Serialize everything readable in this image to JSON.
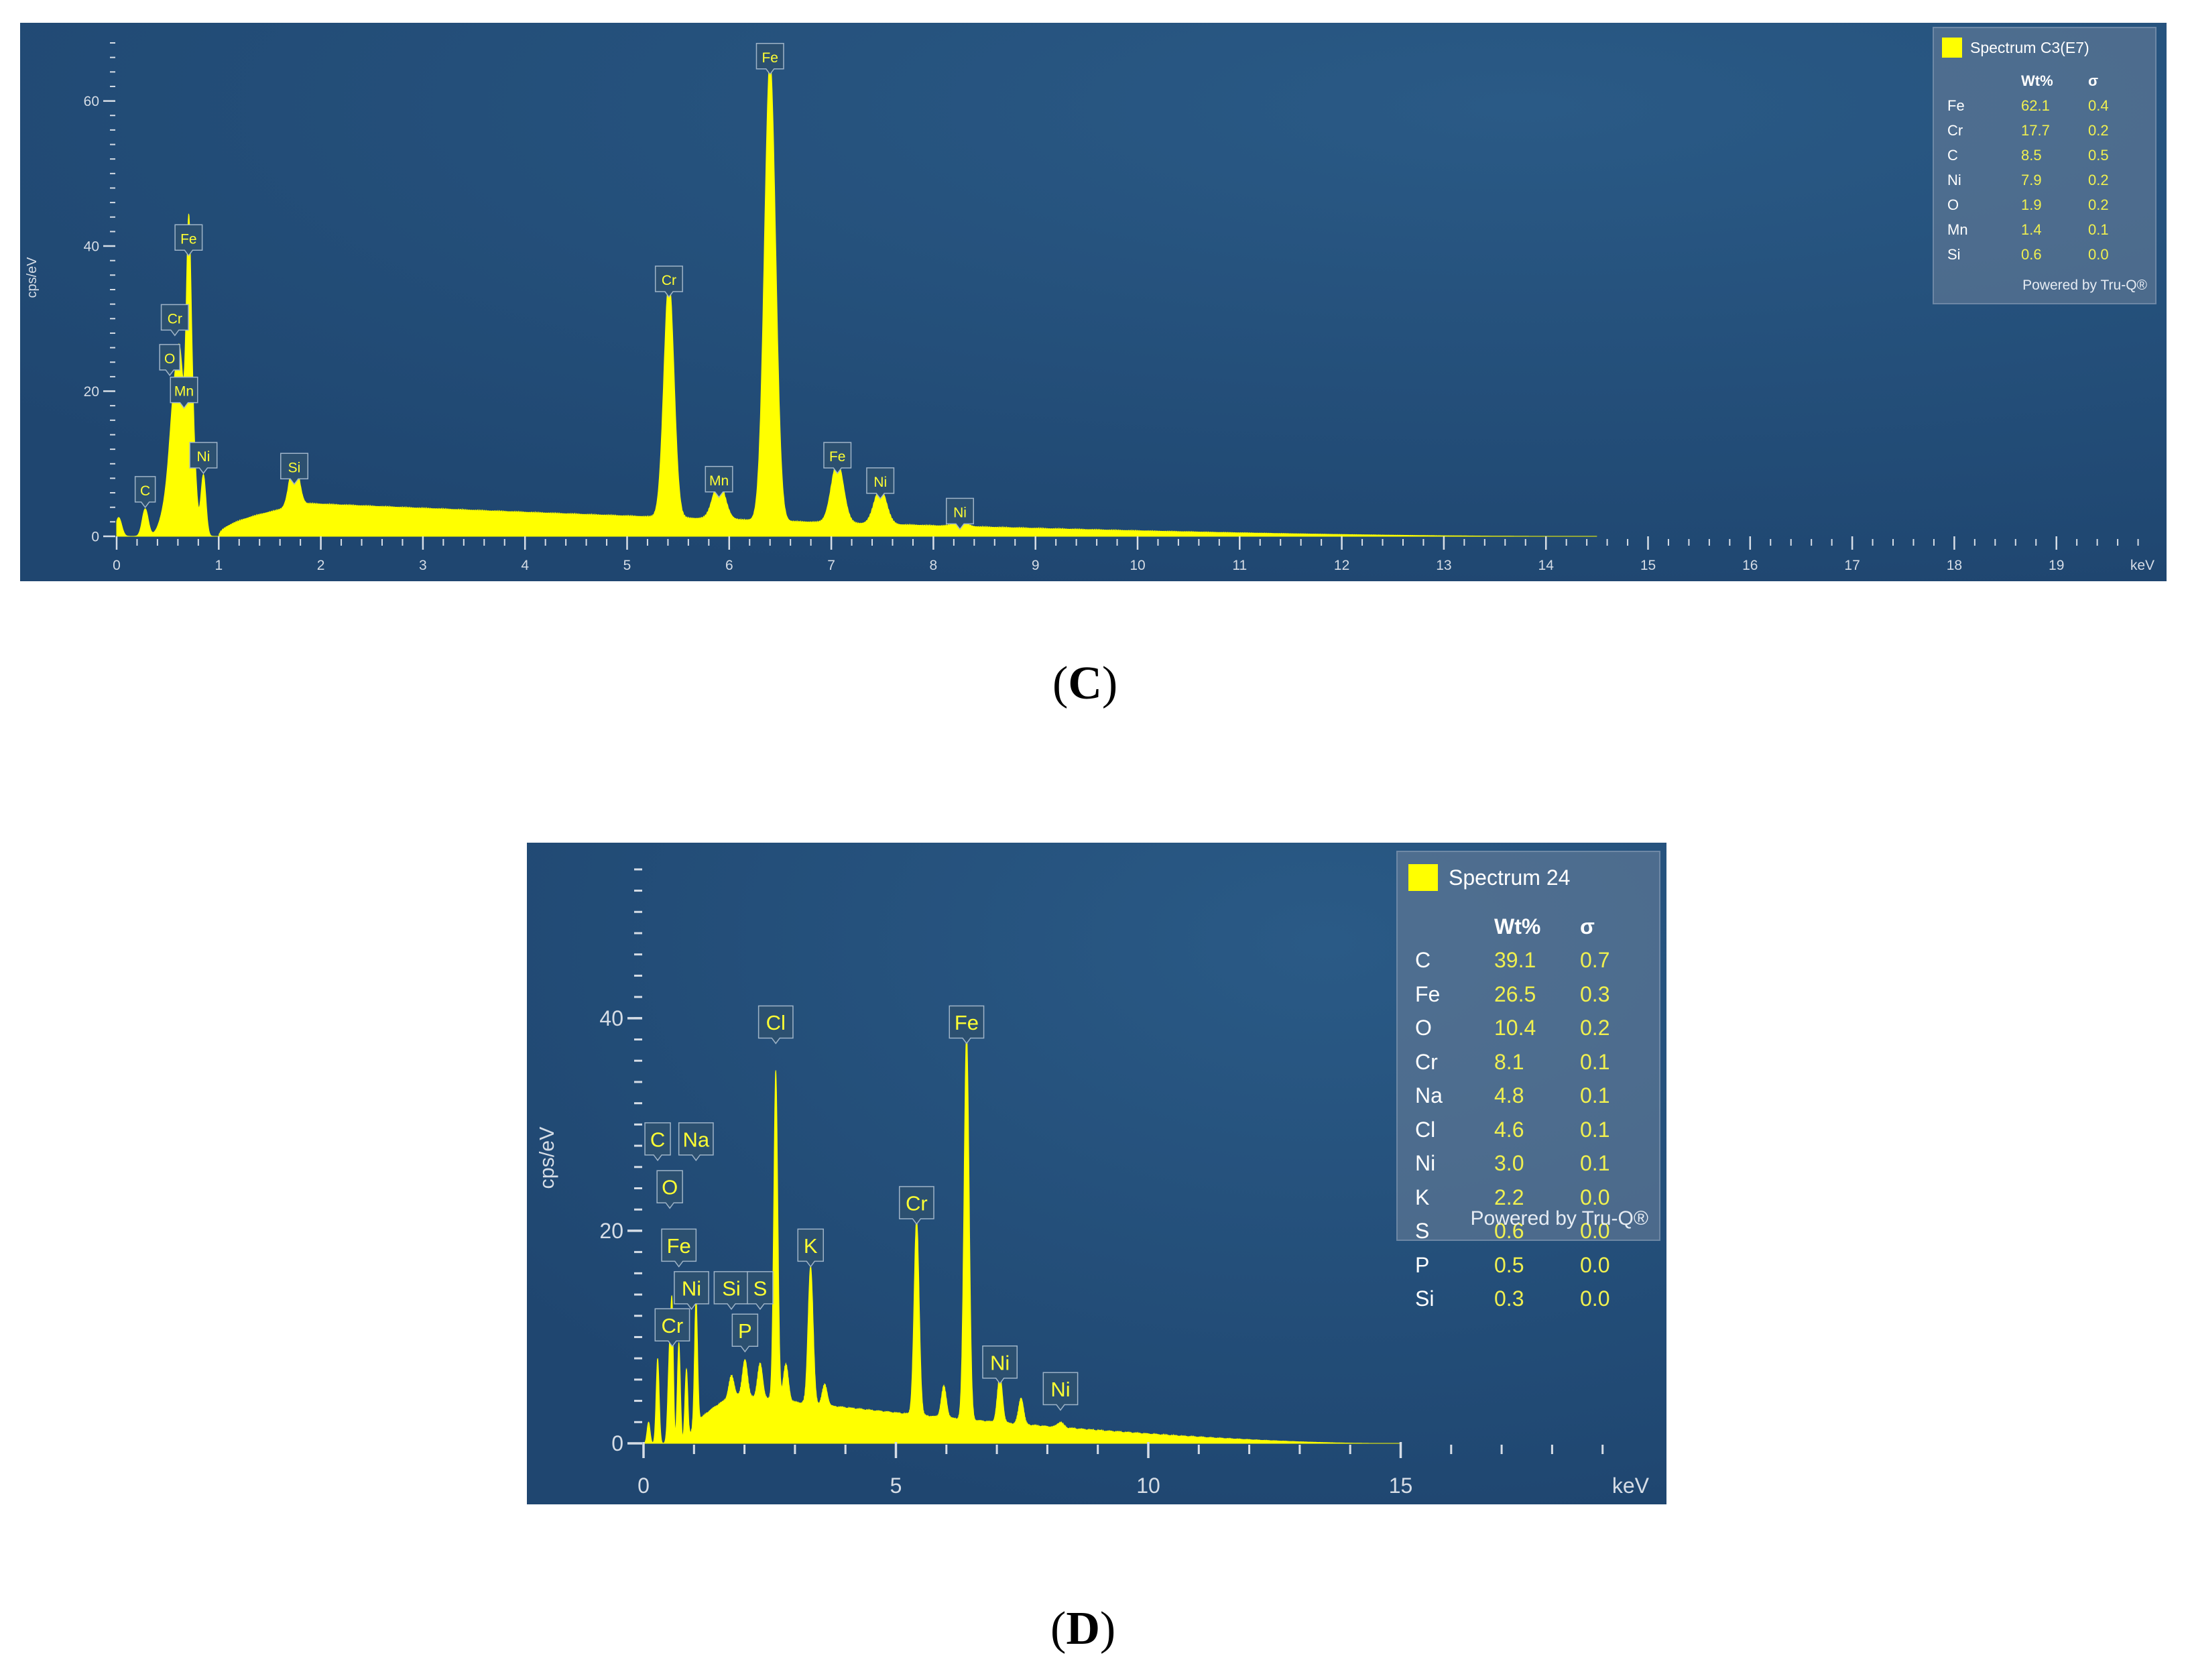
{
  "chart_data": [
    {
      "type": "area",
      "panel_caption": "C",
      "xlabel": "keV",
      "ylabel": "cps/eV",
      "xlim": [
        0,
        20
      ],
      "ylim": [
        0,
        68
      ],
      "x_ticks": [
        "0",
        "1",
        "2",
        "3",
        "4",
        "5",
        "6",
        "7",
        "8",
        "9",
        "10",
        "11",
        "12",
        "13",
        "14",
        "15",
        "16",
        "17",
        "18",
        "19"
      ],
      "y_ticks": [
        "0",
        "20",
        "40",
        "60"
      ],
      "series_color": "#ffff00",
      "background_color": "#1f4670",
      "background": {
        "kind": "bremsstrahlung",
        "start": 1.0,
        "end": 14,
        "peak_x": 1.9,
        "peak_y": 4.5,
        "tail": 1.0
      },
      "peaks": [
        {
          "x": 0.02,
          "y": 2.6,
          "w": 0.03
        },
        {
          "x": 0.28,
          "y": 3.8,
          "w": 0.03
        },
        {
          "x": 0.52,
          "y": 6,
          "w": 0.07
        },
        {
          "x": 0.57,
          "y": 14,
          "w": 0.045
        },
        {
          "x": 0.63,
          "y": 17,
          "w": 0.035
        },
        {
          "x": 0.705,
          "y": 38.5,
          "w": 0.025
        },
        {
          "x": 0.75,
          "y": 12,
          "w": 0.03
        },
        {
          "x": 0.85,
          "y": 8.5,
          "w": 0.025
        },
        {
          "x": 1.74,
          "y": 7,
          "w": 0.045
        },
        {
          "x": 5.41,
          "y": 32.8,
          "w": 0.05
        },
        {
          "x": 5.9,
          "y": 5.2,
          "w": 0.06
        },
        {
          "x": 6.4,
          "y": 63.5,
          "w": 0.055
        },
        {
          "x": 7.06,
          "y": 8.5,
          "w": 0.06
        },
        {
          "x": 7.48,
          "y": 5,
          "w": 0.06
        },
        {
          "x": 8.26,
          "y": 0.8,
          "w": 0.06
        }
      ],
      "peak_labels": [
        {
          "text": "C",
          "x": 0.28,
          "y": 3.8
        },
        {
          "text": "O",
          "x": 0.52,
          "y": 22
        },
        {
          "text": "Cr",
          "x": 0.57,
          "y": 27.5
        },
        {
          "text": "Fe",
          "x": 0.705,
          "y": 38.5
        },
        {
          "text": "Mn",
          "x": 0.66,
          "y": 17.5
        },
        {
          "text": "Ni",
          "x": 0.85,
          "y": 8.5
        },
        {
          "text": "Si",
          "x": 1.74,
          "y": 7
        },
        {
          "text": "Cr",
          "x": 5.41,
          "y": 32.8
        },
        {
          "text": "Mn",
          "x": 5.9,
          "y": 5.2
        },
        {
          "text": "Fe",
          "x": 6.4,
          "y": 63.5
        },
        {
          "text": "Fe",
          "x": 7.06,
          "y": 8.5
        },
        {
          "text": "Ni",
          "x": 7.48,
          "y": 5
        },
        {
          "text": "Ni",
          "x": 8.26,
          "y": 0.8
        }
      ],
      "legend": {
        "title": "Spectrum C3(E7)",
        "col_wt": "Wt%",
        "col_sigma": "σ",
        "rows": [
          {
            "el": "Fe",
            "wt": "62.1",
            "sigma": "0.4"
          },
          {
            "el": "Cr",
            "wt": "17.7",
            "sigma": "0.2"
          },
          {
            "el": "C",
            "wt": "8.5",
            "sigma": "0.5"
          },
          {
            "el": "Ni",
            "wt": "7.9",
            "sigma": "0.2"
          },
          {
            "el": "O",
            "wt": "1.9",
            "sigma": "0.2"
          },
          {
            "el": "Mn",
            "wt": "1.4",
            "sigma": "0.1"
          },
          {
            "el": "Si",
            "wt": "0.6",
            "sigma": "0.0"
          }
        ],
        "powered": "Powered by Tru-Q®"
      }
    },
    {
      "type": "area",
      "panel_caption": "D",
      "xlabel": "keV",
      "ylabel": "cps/eV",
      "xlim": [
        0,
        20
      ],
      "ylim": [
        0,
        55
      ],
      "x_ticks": [
        "0",
        "5",
        "10",
        "15"
      ],
      "y_ticks": [
        "0",
        "20",
        "40"
      ],
      "series_color": "#ffff00",
      "background_color": "#1f4670",
      "background": {
        "kind": "bremsstrahlung",
        "start": 0.9,
        "end": 14.5,
        "peak_x": 1.8,
        "peak_y": 4.5,
        "tail": 1.3
      },
      "peaks": [
        {
          "x": 0.1,
          "y": 2,
          "w": 0.03
        },
        {
          "x": 0.28,
          "y": 8,
          "w": 0.03
        },
        {
          "x": 0.52,
          "y": 9,
          "w": 0.035
        },
        {
          "x": 0.57,
          "y": 10,
          "w": 0.025
        },
        {
          "x": 0.7,
          "y": 9.5,
          "w": 0.03
        },
        {
          "x": 0.85,
          "y": 7,
          "w": 0.03
        },
        {
          "x": 1.04,
          "y": 12,
          "w": 0.03
        },
        {
          "x": 1.74,
          "y": 2,
          "w": 0.05
        },
        {
          "x": 2.01,
          "y": 3.5,
          "w": 0.05
        },
        {
          "x": 2.31,
          "y": 3.3,
          "w": 0.05
        },
        {
          "x": 2.62,
          "y": 31,
          "w": 0.04
        },
        {
          "x": 2.82,
          "y": 3.5,
          "w": 0.05
        },
        {
          "x": 3.31,
          "y": 13,
          "w": 0.05
        },
        {
          "x": 3.59,
          "y": 2,
          "w": 0.05
        },
        {
          "x": 5.41,
          "y": 18.5,
          "w": 0.05
        },
        {
          "x": 5.95,
          "y": 3,
          "w": 0.05
        },
        {
          "x": 6.4,
          "y": 36.5,
          "w": 0.05
        },
        {
          "x": 7.06,
          "y": 4.5,
          "w": 0.05
        },
        {
          "x": 7.48,
          "y": 2.5,
          "w": 0.05
        },
        {
          "x": 8.26,
          "y": 0.5,
          "w": 0.06
        }
      ],
      "peak_labels": [
        {
          "text": "C",
          "x": 0.28,
          "y": 26.5
        },
        {
          "text": "Na",
          "x": 1.04,
          "y": 26.5
        },
        {
          "text": "O",
          "x": 0.52,
          "y": 22
        },
        {
          "text": "Fe",
          "x": 0.7,
          "y": 16.5
        },
        {
          "text": "Ni",
          "x": 0.95,
          "y": 12.5
        },
        {
          "text": "Cr",
          "x": 0.57,
          "y": 9
        },
        {
          "text": "Si",
          "x": 1.74,
          "y": 12.5
        },
        {
          "text": "S",
          "x": 2.31,
          "y": 12.5
        },
        {
          "text": "P",
          "x": 2.01,
          "y": 8.5
        },
        {
          "text": "Cl",
          "x": 2.62,
          "y": 37.5
        },
        {
          "text": "K",
          "x": 3.31,
          "y": 16.5
        },
        {
          "text": "Cr",
          "x": 5.41,
          "y": 20.5
        },
        {
          "text": "Fe",
          "x": 6.4,
          "y": 37.5
        },
        {
          "text": "Ni",
          "x": 7.06,
          "y": 5.5
        },
        {
          "text": "Ni",
          "x": 8.26,
          "y": 3.0
        }
      ],
      "legend": {
        "title": "Spectrum 24",
        "col_wt": "Wt%",
        "col_sigma": "σ",
        "rows": [
          {
            "el": "C",
            "wt": "39.1",
            "sigma": "0.7"
          },
          {
            "el": "Fe",
            "wt": "26.5",
            "sigma": "0.3"
          },
          {
            "el": "O",
            "wt": "10.4",
            "sigma": "0.2"
          },
          {
            "el": "Cr",
            "wt": "8.1",
            "sigma": "0.1"
          },
          {
            "el": "Na",
            "wt": "4.8",
            "sigma": "0.1"
          },
          {
            "el": "Cl",
            "wt": "4.6",
            "sigma": "0.1"
          },
          {
            "el": "Ni",
            "wt": "3.0",
            "sigma": "0.1"
          },
          {
            "el": "K",
            "wt": "2.2",
            "sigma": "0.0"
          },
          {
            "el": "S",
            "wt": "0.6",
            "sigma": "0.0"
          },
          {
            "el": "P",
            "wt": "0.5",
            "sigma": "0.0"
          },
          {
            "el": "Si",
            "wt": "0.3",
            "sigma": "0.0"
          }
        ],
        "powered": "Powered by Tru-Q®"
      }
    }
  ]
}
